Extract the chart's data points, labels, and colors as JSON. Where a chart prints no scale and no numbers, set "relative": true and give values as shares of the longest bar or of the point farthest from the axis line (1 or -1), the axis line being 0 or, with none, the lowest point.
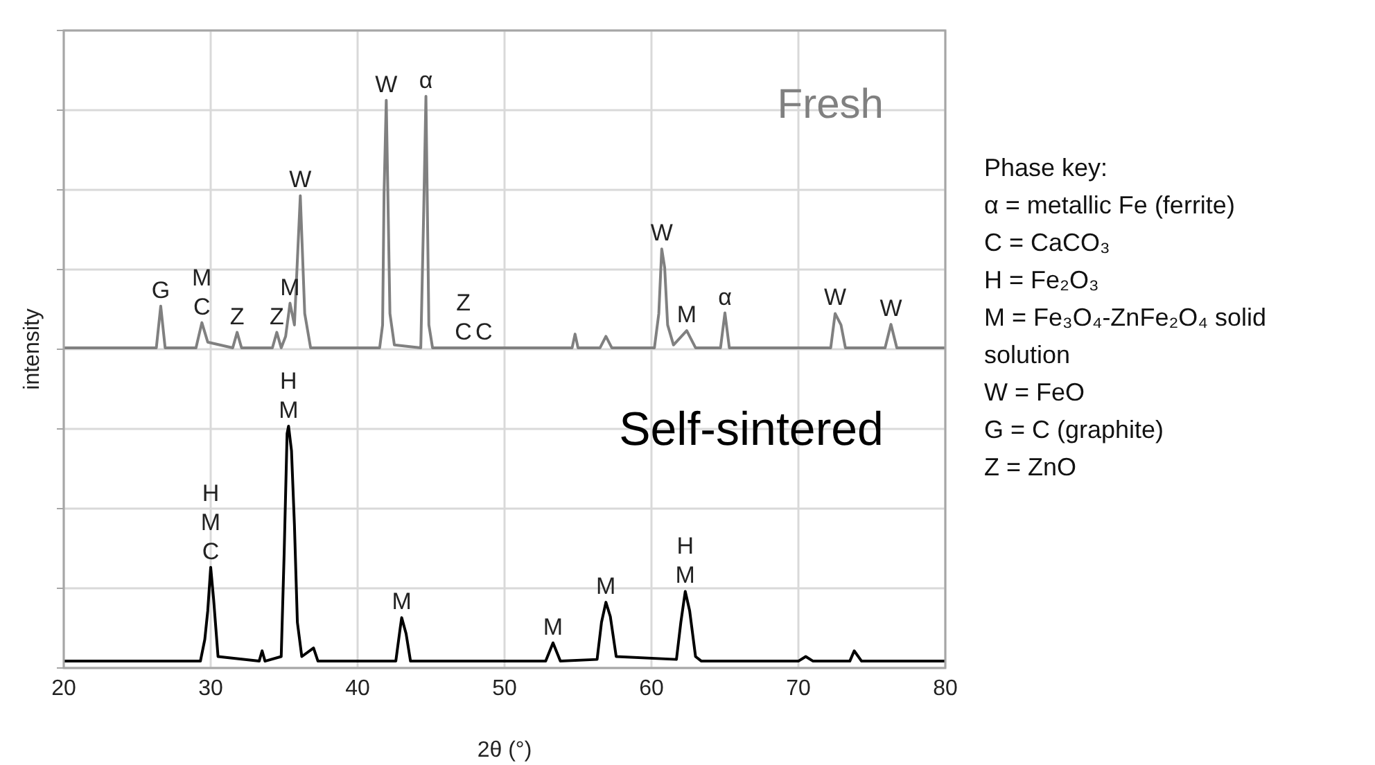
{
  "chart_data": {
    "type": "line",
    "relative": true,
    "xlabel": "2θ (°)",
    "ylabel": "intensity",
    "xlim": [
      20,
      80
    ],
    "xticks": [
      20,
      30,
      40,
      50,
      60,
      70,
      80
    ],
    "grid": true,
    "marker": "none",
    "line_style": "solid",
    "series": [
      {
        "name": "Fresh",
        "color": "#808080",
        "x": [
          20,
          26.3,
          26.6,
          26.9,
          29.0,
          29.4,
          29.8,
          31.5,
          31.8,
          32.1,
          34.2,
          34.5,
          34.8,
          35.1,
          35.4,
          35.7,
          36.1,
          36.4,
          36.8,
          41.5,
          41.7,
          41.8,
          41.95,
          42.2,
          42.5,
          44.3,
          44.5,
          44.65,
          44.85,
          45.1,
          47.2,
          48.6,
          54.6,
          54.8,
          55.0,
          56.5,
          56.9,
          57.3,
          60.2,
          60.5,
          60.7,
          60.9,
          61.1,
          61.5,
          62.4,
          63.0,
          64.7,
          65.0,
          65.3,
          72.2,
          72.5,
          72.9,
          73.2,
          75.9,
          76.3,
          76.7,
          80
        ],
        "values": [
          0.56,
          0.56,
          0.633,
          0.56,
          0.56,
          0.604,
          0.57,
          0.56,
          0.587,
          0.56,
          0.56,
          0.587,
          0.56,
          0.58,
          0.638,
          0.6,
          0.826,
          0.62,
          0.56,
          0.56,
          0.6,
          0.83,
          0.993,
          0.62,
          0.565,
          0.56,
          0.8,
          1,
          0.6,
          0.56,
          0.56,
          0.56,
          0.56,
          0.584,
          0.56,
          0.56,
          0.58,
          0.56,
          0.56,
          0.62,
          0.733,
          0.7,
          0.6,
          0.565,
          0.59,
          0.56,
          0.56,
          0.621,
          0.56,
          0.56,
          0.62,
          0.6,
          0.56,
          0.56,
          0.601,
          0.56,
          0.56
        ]
      },
      {
        "name": "Self-sintered",
        "color": "#000000",
        "x": [
          20,
          29.3,
          29.6,
          29.8,
          30.0,
          30.2,
          30.5,
          33.3,
          33.5,
          33.7,
          34.8,
          35.0,
          35.2,
          35.3,
          35.5,
          35.7,
          35.9,
          36.2,
          37.0,
          37.3,
          42.6,
          42.9,
          43.0,
          43.3,
          43.6,
          52.8,
          53.3,
          53.8,
          56.3,
          56.6,
          56.9,
          57.2,
          57.6,
          61.7,
          62.0,
          62.3,
          62.6,
          63.0,
          63.4,
          70.0,
          70.5,
          71.0,
          73.5,
          73.8,
          74.3,
          80
        ],
        "values": [
          0.012,
          0.012,
          0.05,
          0.1,
          0.176,
          0.12,
          0.02,
          0.012,
          0.03,
          0.012,
          0.02,
          0.2,
          0.41,
          0.423,
          0.38,
          0.25,
          0.08,
          0.02,
          0.035,
          0.012,
          0.012,
          0.07,
          0.088,
          0.06,
          0.012,
          0.012,
          0.044,
          0.012,
          0.015,
          0.08,
          0.115,
          0.09,
          0.02,
          0.015,
          0.08,
          0.134,
          0.1,
          0.02,
          0.012,
          0.012,
          0.02,
          0.012,
          0.012,
          0.03,
          0.012,
          0.012
        ]
      }
    ],
    "annotations": [
      {
        "text": "G",
        "x": 26.6,
        "y": 0.633
      },
      {
        "text": "C",
        "x": 29.4,
        "y": 0.604
      },
      {
        "text": "M",
        "x": 29.4,
        "y": 0.604
      },
      {
        "text": "Z",
        "x": 31.8,
        "y": 0.587
      },
      {
        "text": "Z",
        "x": 34.5,
        "y": 0.587
      },
      {
        "text": "M",
        "x": 35.4,
        "y": 0.638
      },
      {
        "text": "W",
        "x": 36.1,
        "y": 0.826
      },
      {
        "text": "W",
        "x": 41.95,
        "y": 0.993
      },
      {
        "text": "α",
        "x": 44.65,
        "y": 1
      },
      {
        "text": "C",
        "x": 47.2,
        "y": 0.56
      },
      {
        "text": "Z",
        "x": 47.2,
        "y": 0.56
      },
      {
        "text": "C",
        "x": 48.6,
        "y": 0.56
      },
      {
        "text": "W",
        "x": 60.7,
        "y": 0.733
      },
      {
        "text": "M",
        "x": 62.4,
        "y": 0.59
      },
      {
        "text": "α",
        "x": 65.0,
        "y": 0.621
      },
      {
        "text": "W",
        "x": 72.5,
        "y": 0.62
      },
      {
        "text": "W",
        "x": 76.3,
        "y": 0.601
      },
      {
        "text": "C",
        "x": 30.0,
        "y": 0.176
      },
      {
        "text": "M",
        "x": 30.0,
        "y": 0.176
      },
      {
        "text": "H",
        "x": 30.0,
        "y": 0.176
      },
      {
        "text": "M",
        "x": 35.3,
        "y": 0.423
      },
      {
        "text": "H",
        "x": 35.3,
        "y": 0.423
      },
      {
        "text": "M",
        "x": 43.0,
        "y": 0.088
      },
      {
        "text": "M",
        "x": 53.3,
        "y": 0.044
      },
      {
        "text": "M",
        "x": 56.9,
        "y": 0.115
      },
      {
        "text": "M",
        "x": 62.3,
        "y": 0.134
      },
      {
        "text": "H",
        "x": 62.3,
        "y": 0.134
      },
      "Phase key:",
      "α = metallic Fe (ferrite)",
      "C = CaCO₃",
      "H = Fe₂O₃",
      "M = Fe₃O₄-ZnFe₂O₄ solid solution",
      "W = FeO",
      "G = C (graphite)",
      "Z = ZnO"
    ]
  }
}
